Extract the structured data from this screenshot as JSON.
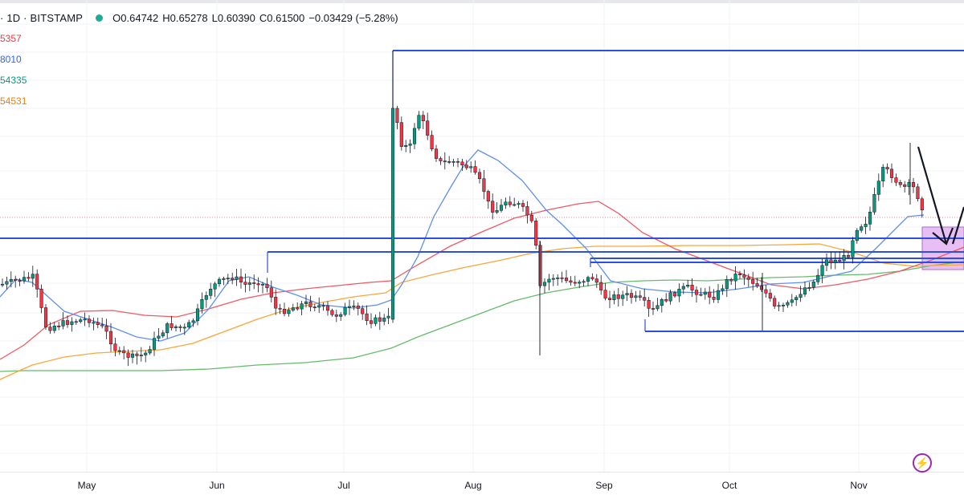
{
  "header": {
    "symbol": "· 1D · BITSTAMP",
    "open": "O0.64742",
    "high": "H0.65278",
    "low": "L0.60390",
    "close": "C0.61500",
    "change": "−0.03429 (−5.28%)"
  },
  "ma_values": [
    {
      "text": "5357",
      "color": "#f23645"
    },
    {
      "text": "8010",
      "color": "#2962ff"
    },
    {
      "text": "54335",
      "color": "#089981"
    },
    {
      "text": "54531",
      "color": "#f57c00"
    }
  ],
  "x_axis": [
    "May",
    "Jun",
    "Jul",
    "Aug",
    "Sep",
    "Oct",
    "Nov"
  ],
  "colors": {
    "up": "#089981",
    "down": "#f23645",
    "ema_blue": "#5b8ff0",
    "ema_red": "#f0626b",
    "ema_orange": "#f7a23c",
    "ema_green": "#6cc46c",
    "level_line": "#2c4fe0",
    "zone_fill": "#d9a8f0"
  },
  "logo_icon": "tradingview-lightning-icon"
}
